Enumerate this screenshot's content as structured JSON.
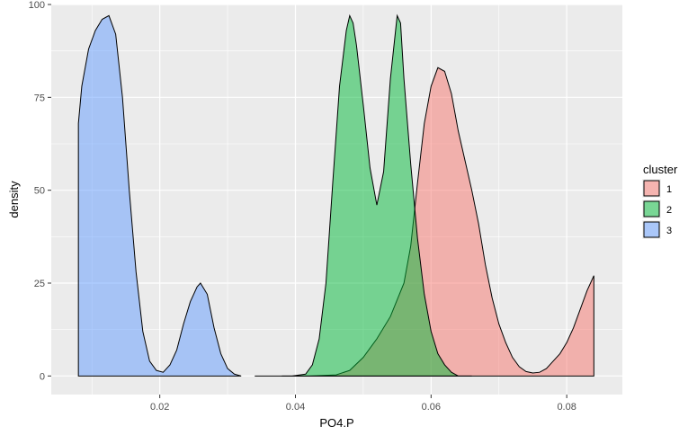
{
  "chart_data": {
    "type": "area",
    "subtype": "density",
    "xlabel": "PO4.P",
    "ylabel": "density",
    "xlim": [
      0.004,
      0.0882
    ],
    "ylim": [
      -5,
      100
    ],
    "x_ticks": [
      0.02,
      0.04,
      0.06,
      0.08
    ],
    "x_tick_labels": [
      "0.02",
      "0.04",
      "0.06",
      "0.08"
    ],
    "y_ticks": [
      0,
      25,
      50,
      75,
      100
    ],
    "y_tick_labels": [
      "0",
      "25",
      "50",
      "75",
      "100"
    ],
    "grid": true,
    "legend": {
      "title": "cluster",
      "position": "right"
    },
    "series": [
      {
        "name": "1",
        "color": "#F8766D",
        "points": [
          [
            0.038,
            0
          ],
          [
            0.042,
            0
          ],
          [
            0.046,
            0.3
          ],
          [
            0.048,
            1.5
          ],
          [
            0.05,
            5
          ],
          [
            0.052,
            10
          ],
          [
            0.054,
            16
          ],
          [
            0.056,
            25
          ],
          [
            0.057,
            35
          ],
          [
            0.058,
            52
          ],
          [
            0.059,
            68
          ],
          [
            0.06,
            78
          ],
          [
            0.061,
            83
          ],
          [
            0.062,
            82
          ],
          [
            0.063,
            76
          ],
          [
            0.064,
            66
          ],
          [
            0.065,
            58
          ],
          [
            0.066,
            50
          ],
          [
            0.067,
            41
          ],
          [
            0.068,
            30
          ],
          [
            0.069,
            21
          ],
          [
            0.07,
            14
          ],
          [
            0.071,
            9
          ],
          [
            0.072,
            5
          ],
          [
            0.073,
            2.5
          ],
          [
            0.074,
            1.2
          ],
          [
            0.075,
            0.8
          ],
          [
            0.076,
            1
          ],
          [
            0.077,
            2
          ],
          [
            0.078,
            4
          ],
          [
            0.079,
            6
          ],
          [
            0.08,
            9
          ],
          [
            0.081,
            13
          ],
          [
            0.082,
            18
          ],
          [
            0.083,
            23
          ],
          [
            0.084,
            27
          ]
        ]
      },
      {
        "name": "2",
        "color": "#00BA38",
        "points": [
          [
            0.034,
            0
          ],
          [
            0.0395,
            0
          ],
          [
            0.0415,
            0.5
          ],
          [
            0.0425,
            3
          ],
          [
            0.0435,
            10
          ],
          [
            0.0445,
            25
          ],
          [
            0.0455,
            52
          ],
          [
            0.0465,
            78
          ],
          [
            0.0475,
            93
          ],
          [
            0.048,
            97
          ],
          [
            0.0485,
            95
          ],
          [
            0.049,
            89
          ],
          [
            0.05,
            73
          ],
          [
            0.051,
            56
          ],
          [
            0.052,
            46
          ],
          [
            0.053,
            55
          ],
          [
            0.054,
            80
          ],
          [
            0.055,
            97
          ],
          [
            0.0555,
            95
          ],
          [
            0.056,
            80
          ],
          [
            0.057,
            57
          ],
          [
            0.058,
            37
          ],
          [
            0.059,
            22
          ],
          [
            0.06,
            12
          ],
          [
            0.061,
            6
          ],
          [
            0.062,
            3
          ],
          [
            0.063,
            1
          ],
          [
            0.064,
            0
          ],
          [
            0.066,
            0
          ]
        ]
      },
      {
        "name": "3",
        "color": "#619CFF",
        "points": [
          [
            0.008,
            68
          ],
          [
            0.0085,
            78
          ],
          [
            0.0095,
            88
          ],
          [
            0.0105,
            93
          ],
          [
            0.0115,
            96
          ],
          [
            0.0125,
            97
          ],
          [
            0.0135,
            92
          ],
          [
            0.0145,
            75
          ],
          [
            0.0155,
            50
          ],
          [
            0.0165,
            28
          ],
          [
            0.0175,
            12
          ],
          [
            0.0185,
            4
          ],
          [
            0.0195,
            1.5
          ],
          [
            0.0205,
            1
          ],
          [
            0.0215,
            3
          ],
          [
            0.0225,
            7
          ],
          [
            0.0235,
            14
          ],
          [
            0.0245,
            20
          ],
          [
            0.0255,
            24
          ],
          [
            0.026,
            25
          ],
          [
            0.027,
            22
          ],
          [
            0.028,
            13
          ],
          [
            0.029,
            6
          ],
          [
            0.03,
            2
          ],
          [
            0.031,
            0.5
          ],
          [
            0.032,
            0
          ]
        ]
      }
    ]
  }
}
